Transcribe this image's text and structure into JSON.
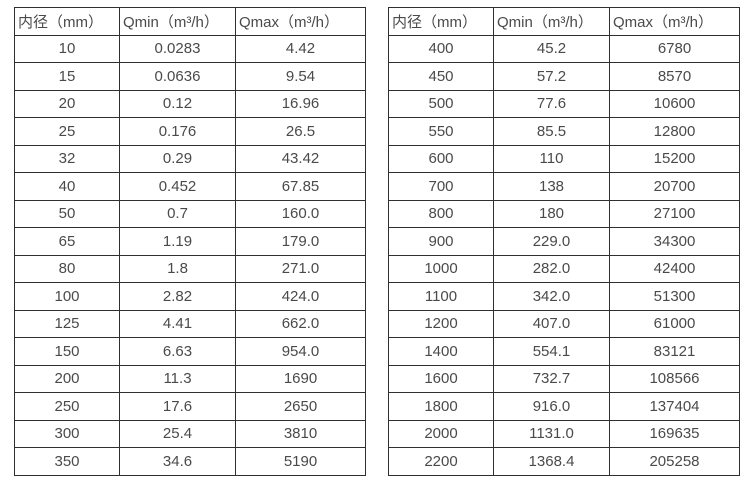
{
  "style": {
    "background": "#ffffff",
    "border_color": "#2f2f2f",
    "text_color": "#4a4a4a"
  },
  "tables": [
    {
      "name": "small-diameter-flow-table",
      "headers": [
        "内径（mm）",
        "Qmin（m³/h）",
        "Qmax（m³/h）"
      ],
      "rows": [
        [
          "10",
          "0.0283",
          "4.42"
        ],
        [
          "15",
          "0.0636",
          "9.54"
        ],
        [
          "20",
          "0.12",
          "16.96"
        ],
        [
          "25",
          "0.176",
          "26.5"
        ],
        [
          "32",
          "0.29",
          "43.42"
        ],
        [
          "40",
          "0.452",
          "67.85"
        ],
        [
          "50",
          "0.7",
          "160.0"
        ],
        [
          "65",
          "1.19",
          "179.0"
        ],
        [
          "80",
          "1.8",
          "271.0"
        ],
        [
          "100",
          "2.82",
          "424.0"
        ],
        [
          "125",
          "4.41",
          "662.0"
        ],
        [
          "150",
          "6.63",
          "954.0"
        ],
        [
          "200",
          "11.3",
          "1690"
        ],
        [
          "250",
          "17.6",
          "2650"
        ],
        [
          "300",
          "25.4",
          "3810"
        ],
        [
          "350",
          "34.6",
          "5190"
        ]
      ]
    },
    {
      "name": "large-diameter-flow-table",
      "headers": [
        "内径（mm）",
        "Qmin（m³/h）",
        "Qmax（m³/h）"
      ],
      "rows": [
        [
          "400",
          "45.2",
          "6780"
        ],
        [
          "450",
          "57.2",
          "8570"
        ],
        [
          "500",
          "77.6",
          "10600"
        ],
        [
          "550",
          "85.5",
          "12800"
        ],
        [
          "600",
          "110",
          "15200"
        ],
        [
          "700",
          "138",
          "20700"
        ],
        [
          "800",
          "180",
          "27100"
        ],
        [
          "900",
          "229.0",
          "34300"
        ],
        [
          "1000",
          "282.0",
          "42400"
        ],
        [
          "1100",
          "342.0",
          "51300"
        ],
        [
          "1200",
          "407.0",
          "61000"
        ],
        [
          "1400",
          "554.1",
          "83121"
        ],
        [
          "1600",
          "732.7",
          "108566"
        ],
        [
          "1800",
          "916.0",
          "137404"
        ],
        [
          "2000",
          "1131.0",
          "169635"
        ],
        [
          "2200",
          "1368.4",
          "205258"
        ]
      ]
    }
  ]
}
